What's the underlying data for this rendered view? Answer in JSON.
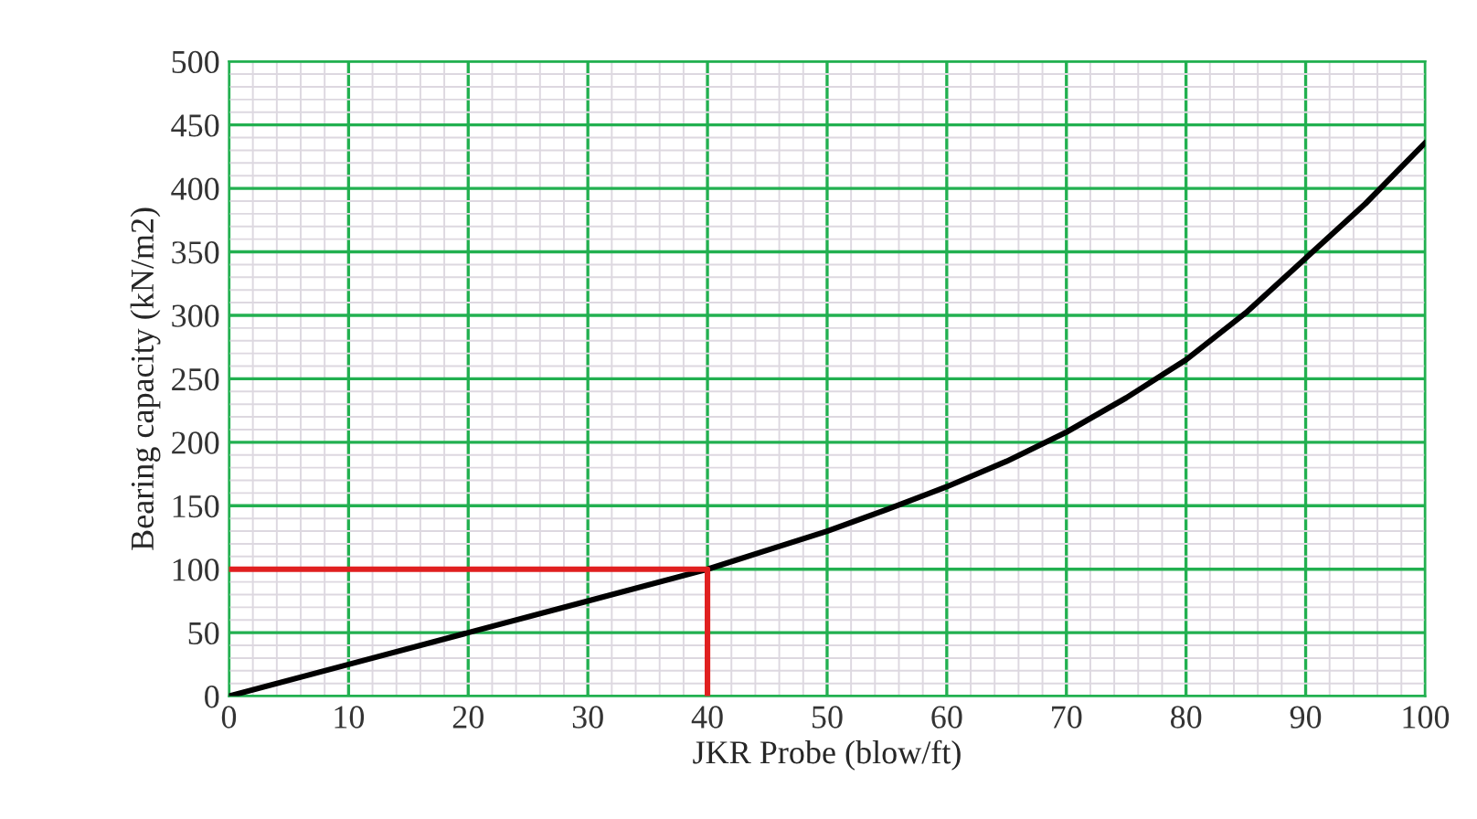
{
  "chart_data": {
    "type": "line",
    "xlabel": "JKR Probe (blow/ft)",
    "ylabel": "Bearing capacity (kN/m2)",
    "xlim": [
      0,
      100
    ],
    "ylim": [
      0,
      500
    ],
    "xticks": [
      0,
      10,
      20,
      30,
      40,
      50,
      60,
      70,
      80,
      90,
      100
    ],
    "yticks": [
      0,
      50,
      100,
      150,
      200,
      250,
      300,
      350,
      400,
      450,
      500
    ],
    "grid": true,
    "legend": false,
    "series": [
      {
        "color": "#000000",
        "x": [
          0,
          10,
          20,
          30,
          40,
          45,
          50,
          55,
          60,
          65,
          70,
          75,
          80,
          85,
          90,
          95,
          100
        ],
        "values": [
          0,
          25,
          50,
          75,
          100,
          115,
          130,
          147,
          165,
          185,
          208,
          235,
          265,
          302,
          345,
          388,
          436
        ]
      },
      {
        "color": "#e02020",
        "x": [
          0,
          40,
          40
        ],
        "values": [
          100,
          100,
          0
        ]
      }
    ]
  }
}
